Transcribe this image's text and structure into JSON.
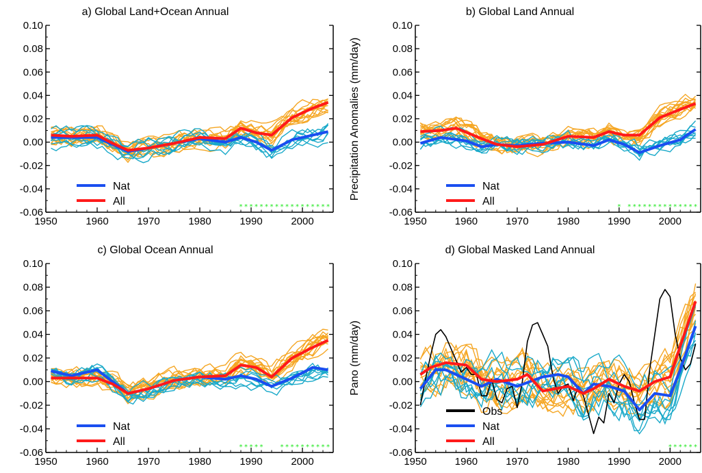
{
  "chart_data": [
    {
      "type": "line",
      "title": "a) Global Land+Ocean Annual",
      "ylabel": "",
      "xlim": [
        1950,
        2006
      ],
      "ylim": [
        -0.06,
        0.1
      ],
      "xticks": [
        1950,
        1960,
        1970,
        1980,
        1990,
        2000
      ],
      "yticks": [
        "-0.06",
        "-0.04",
        "-0.02",
        "0.00",
        "0.02",
        "0.04",
        "0.06",
        "0.08",
        "0.10"
      ],
      "legend": {
        "position": "lower-left",
        "entries": [
          "Nat",
          "All"
        ]
      },
      "series": [
        {
          "name": "Nat",
          "color": "#1a4ef0",
          "x": [
            1951,
            1955,
            1960,
            1963,
            1966,
            1970,
            1975,
            1980,
            1985,
            1988,
            1991,
            1994,
            1998,
            2002,
            2005
          ],
          "y": [
            0.004,
            0.004,
            0.004,
            -0.002,
            -0.008,
            -0.005,
            -0.001,
            0.003,
            0.0,
            0.004,
            0.0,
            -0.007,
            0.002,
            0.006,
            0.009
          ]
        },
        {
          "name": "All",
          "color": "#ff1a1a",
          "x": [
            1951,
            1955,
            1960,
            1963,
            1966,
            1970,
            1975,
            1980,
            1985,
            1988,
            1991,
            1994,
            1998,
            2002,
            2005
          ],
          "y": [
            0.006,
            0.005,
            0.006,
            -0.001,
            -0.007,
            -0.005,
            -0.001,
            0.004,
            0.003,
            0.012,
            0.008,
            0.006,
            0.021,
            0.029,
            0.034
          ]
        }
      ],
      "significance_years": [
        1988,
        1989,
        1990,
        1991,
        1992,
        1993,
        1994,
        1995,
        1996,
        1997,
        1998,
        1999,
        2000,
        2001,
        2002,
        2003,
        2004,
        2005
      ]
    },
    {
      "type": "line",
      "title": "b) Global Land Annual",
      "ylabel": "Precipitation Anomalies (mm/day)",
      "xlim": [
        1950,
        2006
      ],
      "ylim": [
        -0.06,
        0.1
      ],
      "xticks": [
        1950,
        1960,
        1970,
        1980,
        1990,
        2000
      ],
      "yticks": [
        "-0.06",
        "-0.04",
        "-0.02",
        "0.00",
        "0.02",
        "0.04",
        "0.06",
        "0.08",
        "0.10"
      ],
      "legend": {
        "position": "lower-left",
        "entries": [
          "Nat",
          "All"
        ]
      },
      "series": [
        {
          "name": "Nat",
          "color": "#1a4ef0",
          "x": [
            1951,
            1955,
            1960,
            1963,
            1966,
            1970,
            1975,
            1980,
            1985,
            1988,
            1991,
            1994,
            1998,
            2002,
            2005
          ],
          "y": [
            -0.001,
            0.004,
            0.001,
            -0.004,
            -0.002,
            -0.003,
            -0.001,
            0.0,
            -0.003,
            0.002,
            -0.002,
            -0.009,
            -0.003,
            0.002,
            0.011
          ]
        },
        {
          "name": "All",
          "color": "#ff1a1a",
          "x": [
            1951,
            1955,
            1958,
            1963,
            1966,
            1970,
            1975,
            1980,
            1985,
            1988,
            1991,
            1994,
            1998,
            2002,
            2005
          ],
          "y": [
            0.009,
            0.01,
            0.012,
            0.003,
            -0.002,
            -0.004,
            -0.002,
            0.005,
            0.004,
            0.009,
            0.006,
            0.006,
            0.021,
            0.028,
            0.033
          ]
        }
      ],
      "significance_years": [
        1990,
        1992,
        1993,
        1994,
        1995,
        1996,
        1997,
        1998,
        1999,
        2000,
        2001,
        2002,
        2003,
        2004,
        2005
      ]
    },
    {
      "type": "line",
      "title": "c) Global Ocean Annual",
      "ylabel": "",
      "xlim": [
        1950,
        2006
      ],
      "ylim": [
        -0.06,
        0.1
      ],
      "xticks": [
        1950,
        1960,
        1970,
        1980,
        1990,
        2000
      ],
      "yticks": [
        "-0.06",
        "-0.04",
        "-0.02",
        "0.00",
        "0.02",
        "0.04",
        "0.06",
        "0.08",
        "0.10"
      ],
      "legend": {
        "position": "lower-left",
        "entries": [
          "Nat",
          "All"
        ]
      },
      "series": [
        {
          "name": "Nat",
          "color": "#1a4ef0",
          "x": [
            1951,
            1955,
            1960,
            1963,
            1966,
            1970,
            1975,
            1980,
            1985,
            1988,
            1991,
            1994,
            1998,
            2002,
            2005
          ],
          "y": [
            0.009,
            0.005,
            0.01,
            0.0,
            -0.01,
            -0.006,
            0.001,
            0.004,
            0.002,
            0.005,
            0.002,
            -0.004,
            0.003,
            0.012,
            0.01
          ]
        },
        {
          "name": "All",
          "color": "#ff1a1a",
          "x": [
            1951,
            1955,
            1960,
            1963,
            1966,
            1970,
            1975,
            1980,
            1985,
            1988,
            1991,
            1994,
            1998,
            2002,
            2005
          ],
          "y": [
            0.003,
            0.003,
            0.003,
            -0.002,
            -0.01,
            -0.006,
            0.001,
            0.004,
            0.005,
            0.014,
            0.012,
            0.004,
            0.02,
            0.029,
            0.035
          ]
        }
      ],
      "significance_years": [
        1988,
        1989,
        1990,
        1991,
        1992,
        1996,
        1997,
        1998,
        1999,
        2000,
        2001,
        2002,
        2003,
        2004,
        2005
      ]
    },
    {
      "type": "line",
      "title": "d) Global Masked Land Annual",
      "ylabel": "Pano (mm/day)",
      "xlim": [
        1950,
        2006
      ],
      "ylim": [
        -0.06,
        0.1
      ],
      "xticks": [
        1950,
        1960,
        1970,
        1980,
        1990,
        2000
      ],
      "yticks": [
        "-0.06",
        "-0.04",
        "-0.02",
        "0.00",
        "0.02",
        "0.04",
        "0.06",
        "0.08",
        "0.10"
      ],
      "legend": {
        "position": "lower-left",
        "entries": [
          "Obs",
          "Nat",
          "All"
        ]
      },
      "series": [
        {
          "name": "Obs",
          "color": "#000000",
          "x": [
            1951,
            1952,
            1953,
            1954,
            1955,
            1956,
            1957,
            1958,
            1959,
            1960,
            1961,
            1962,
            1963,
            1964,
            1965,
            1966,
            1967,
            1968,
            1969,
            1970,
            1971,
            1972,
            1973,
            1974,
            1975,
            1976,
            1977,
            1978,
            1979,
            1980,
            1981,
            1982,
            1983,
            1984,
            1985,
            1986,
            1987,
            1988,
            1989,
            1990,
            1991,
            1992,
            1993,
            1994,
            1995,
            1996,
            1997,
            1998,
            1999,
            2000,
            2001,
            2002,
            2003,
            2004,
            2005
          ],
          "y": [
            -0.02,
            0.002,
            0.022,
            0.04,
            0.044,
            0.038,
            0.028,
            0.018,
            0.008,
            0.012,
            0.006,
            0.006,
            -0.012,
            -0.012,
            0.002,
            -0.015,
            -0.018,
            -0.006,
            -0.004,
            -0.022,
            0.0,
            0.034,
            0.048,
            0.05,
            0.04,
            0.03,
            0.004,
            -0.01,
            -0.004,
            -0.002,
            -0.016,
            -0.004,
            -0.012,
            -0.028,
            -0.044,
            -0.03,
            -0.035,
            -0.01,
            -0.018,
            -0.002,
            0.006,
            0.0,
            -0.018,
            -0.032,
            -0.032,
            0.01,
            0.04,
            0.07,
            0.078,
            0.072,
            0.04,
            0.02,
            0.01,
            0.015,
            0.032
          ]
        },
        {
          "name": "Nat",
          "color": "#1a4ef0",
          "x": [
            1951,
            1954,
            1956,
            1960,
            1963,
            1966,
            1970,
            1975,
            1978,
            1980,
            1983,
            1985,
            1988,
            1991,
            1994,
            1997,
            2000,
            2002,
            2005
          ],
          "y": [
            -0.006,
            0.01,
            0.01,
            0.002,
            -0.004,
            0.002,
            -0.004,
            0.004,
            0.006,
            0.004,
            -0.01,
            -0.002,
            -0.004,
            -0.008,
            -0.024,
            -0.01,
            -0.012,
            0.01,
            0.047
          ]
        },
        {
          "name": "All",
          "color": "#ff1a1a",
          "x": [
            1951,
            1953,
            1956,
            1960,
            1963,
            1966,
            1970,
            1972,
            1975,
            1980,
            1983,
            1985,
            1988,
            1991,
            1994,
            1997,
            2000,
            2002,
            2005
          ],
          "y": [
            0.006,
            0.012,
            0.016,
            0.014,
            0.002,
            0.0,
            0.002,
            0.006,
            -0.008,
            -0.004,
            -0.01,
            -0.006,
            0.002,
            -0.004,
            -0.008,
            0.0,
            0.004,
            0.03,
            0.068
          ]
        }
      ],
      "significance_years": [
        2000,
        2001,
        2002,
        2003,
        2004,
        2005
      ]
    }
  ]
}
